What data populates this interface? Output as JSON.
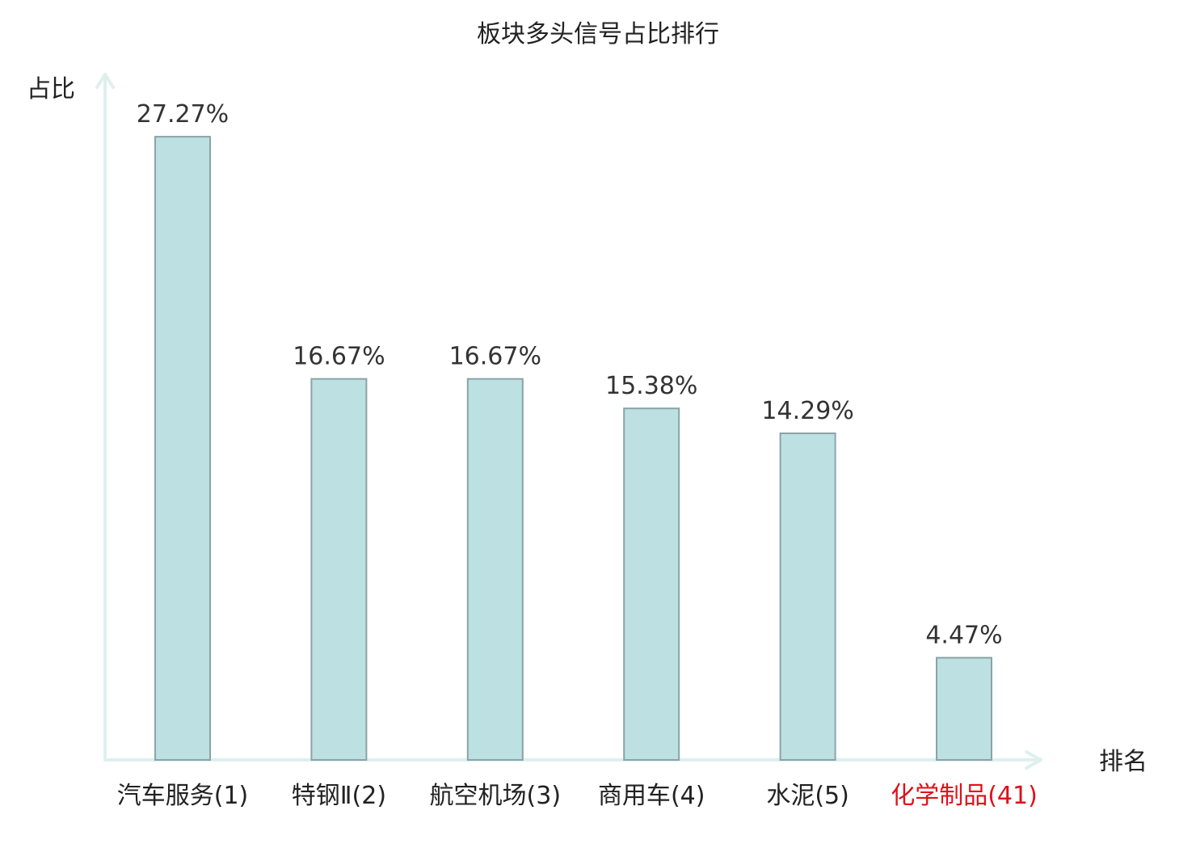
{
  "chart_data": {
    "type": "bar",
    "title": "板块多头信号占比排行",
    "xlabel": "排名",
    "ylabel": "占比",
    "categories": [
      {
        "name": "汽车服务",
        "rank": "(1)",
        "highlight": false
      },
      {
        "name": "特钢Ⅱ",
        "rank": "(2)",
        "highlight": false
      },
      {
        "name": "航空机场",
        "rank": "(3)",
        "highlight": false
      },
      {
        "name": "商用车",
        "rank": "(4)",
        "highlight": false
      },
      {
        "name": "水泥",
        "rank": "(5)",
        "highlight": false
      },
      {
        "name": "化学制品",
        "rank": "(41)",
        "highlight": true
      }
    ],
    "values": [
      27.27,
      16.67,
      16.67,
      15.38,
      14.29,
      4.47
    ],
    "value_labels": [
      "27.27%",
      "16.67%",
      "16.67%",
      "15.38%",
      "14.29%",
      "4.47%"
    ],
    "ylim": [
      0,
      30
    ],
    "grid": false,
    "y_ticks_shown": false
  },
  "colors": {
    "bar_fill": "#bde0e2",
    "bar_stroke": "#8aa4a6",
    "axis": "#def0ee",
    "text": "#222222",
    "value_text": "#333333",
    "highlight": "#e0101a"
  }
}
